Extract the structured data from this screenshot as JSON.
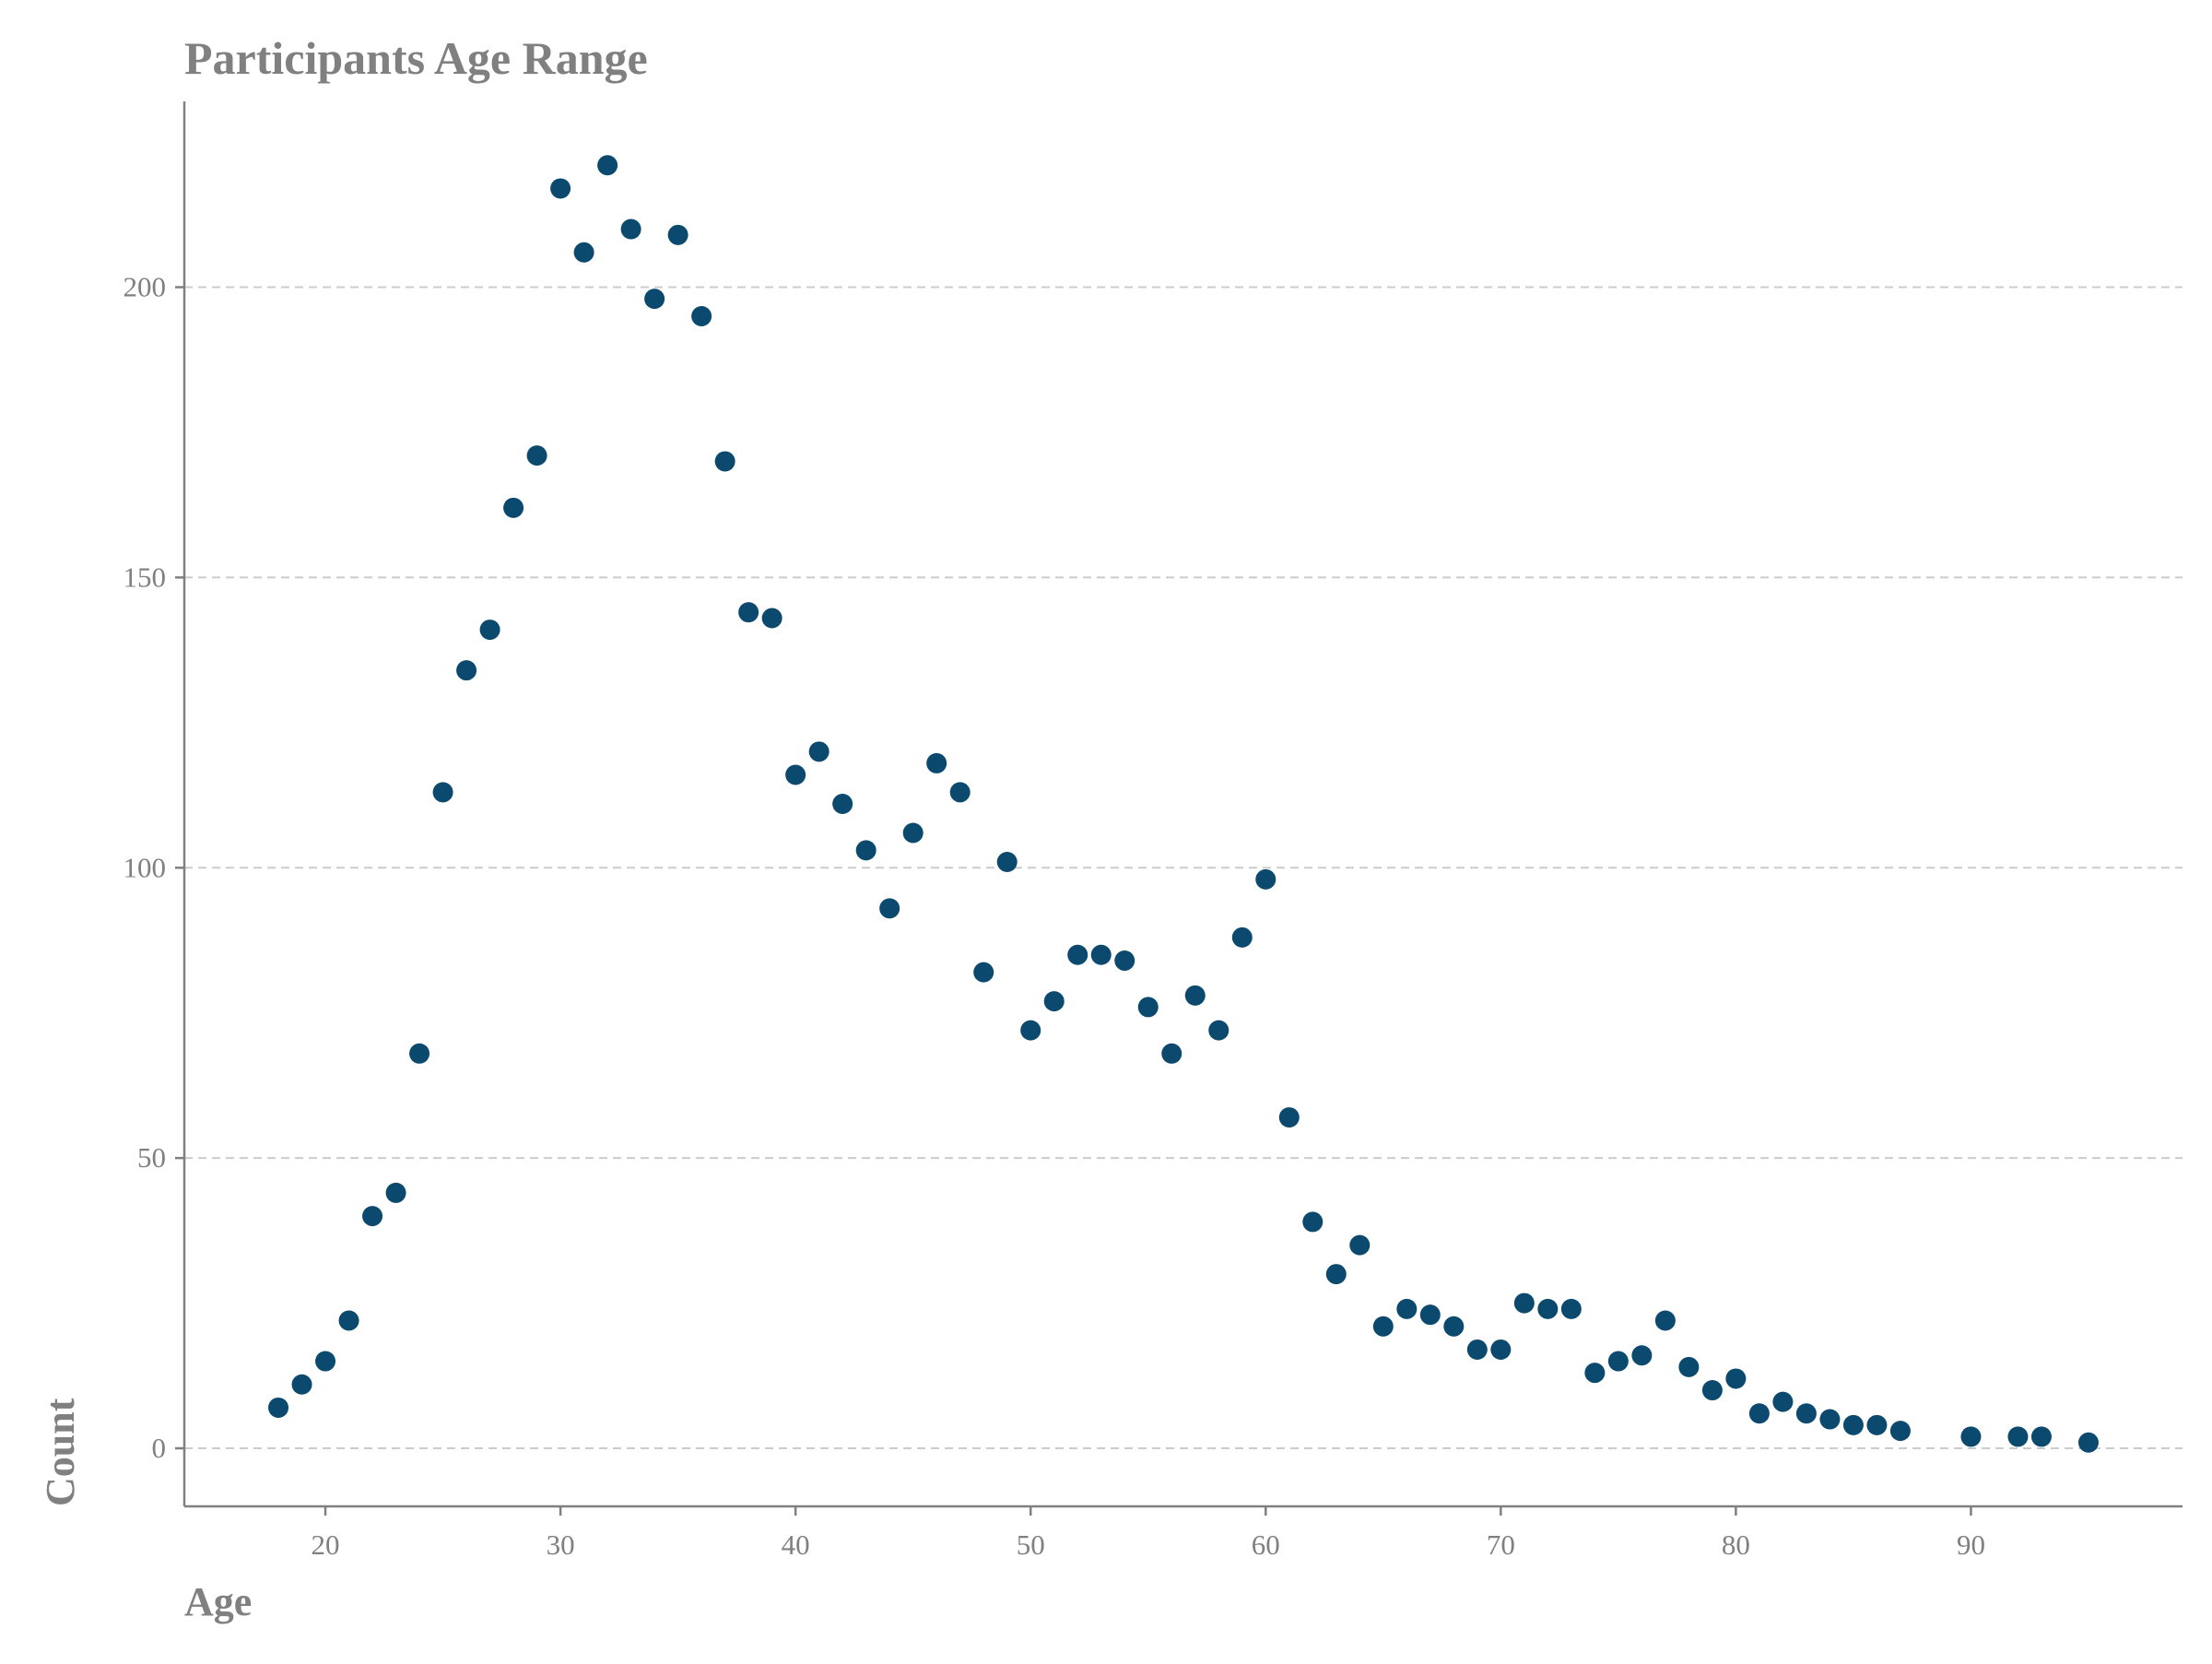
{
  "chart_data": {
    "type": "scatter",
    "title": "Participants Age Range",
    "xlabel": "Age",
    "ylabel": "Count",
    "xlim": [
      14,
      99
    ],
    "ylim": [
      -10,
      232
    ],
    "xticks": [
      20,
      30,
      40,
      50,
      60,
      70,
      80,
      90
    ],
    "yticks": [
      0,
      50,
      100,
      150,
      200
    ],
    "grid": "horizontal dashed",
    "marker_color": "#0b4a6e",
    "points": [
      {
        "x": 18,
        "y": 7
      },
      {
        "x": 19,
        "y": 11
      },
      {
        "x": 20,
        "y": 15
      },
      {
        "x": 21,
        "y": 22
      },
      {
        "x": 22,
        "y": 40
      },
      {
        "x": 23,
        "y": 44
      },
      {
        "x": 24,
        "y": 68
      },
      {
        "x": 25,
        "y": 113
      },
      {
        "x": 26,
        "y": 134
      },
      {
        "x": 27,
        "y": 141
      },
      {
        "x": 28,
        "y": 162
      },
      {
        "x": 29,
        "y": 171
      },
      {
        "x": 30,
        "y": 217
      },
      {
        "x": 31,
        "y": 206
      },
      {
        "x": 32,
        "y": 221
      },
      {
        "x": 33,
        "y": 210
      },
      {
        "x": 34,
        "y": 198
      },
      {
        "x": 35,
        "y": 209
      },
      {
        "x": 36,
        "y": 195
      },
      {
        "x": 37,
        "y": 170
      },
      {
        "x": 38,
        "y": 144
      },
      {
        "x": 39,
        "y": 143
      },
      {
        "x": 40,
        "y": 116
      },
      {
        "x": 41,
        "y": 120
      },
      {
        "x": 42,
        "y": 111
      },
      {
        "x": 43,
        "y": 103
      },
      {
        "x": 44,
        "y": 93
      },
      {
        "x": 45,
        "y": 106
      },
      {
        "x": 46,
        "y": 118
      },
      {
        "x": 47,
        "y": 113
      },
      {
        "x": 48,
        "y": 82
      },
      {
        "x": 49,
        "y": 101
      },
      {
        "x": 50,
        "y": 72
      },
      {
        "x": 51,
        "y": 77
      },
      {
        "x": 52,
        "y": 85
      },
      {
        "x": 53,
        "y": 85
      },
      {
        "x": 54,
        "y": 84
      },
      {
        "x": 55,
        "y": 76
      },
      {
        "x": 56,
        "y": 68
      },
      {
        "x": 57,
        "y": 78
      },
      {
        "x": 58,
        "y": 72
      },
      {
        "x": 59,
        "y": 88
      },
      {
        "x": 60,
        "y": 98
      },
      {
        "x": 61,
        "y": 57
      },
      {
        "x": 62,
        "y": 39
      },
      {
        "x": 63,
        "y": 30
      },
      {
        "x": 64,
        "y": 35
      },
      {
        "x": 65,
        "y": 21
      },
      {
        "x": 66,
        "y": 24
      },
      {
        "x": 67,
        "y": 23
      },
      {
        "x": 68,
        "y": 21
      },
      {
        "x": 69,
        "y": 17
      },
      {
        "x": 70,
        "y": 17
      },
      {
        "x": 71,
        "y": 25
      },
      {
        "x": 72,
        "y": 24
      },
      {
        "x": 73,
        "y": 24
      },
      {
        "x": 74,
        "y": 13
      },
      {
        "x": 75,
        "y": 15
      },
      {
        "x": 76,
        "y": 16
      },
      {
        "x": 77,
        "y": 22
      },
      {
        "x": 78,
        "y": 14
      },
      {
        "x": 79,
        "y": 10
      },
      {
        "x": 80,
        "y": 12
      },
      {
        "x": 81,
        "y": 6
      },
      {
        "x": 82,
        "y": 8
      },
      {
        "x": 83,
        "y": 6
      },
      {
        "x": 84,
        "y": 5
      },
      {
        "x": 85,
        "y": 4
      },
      {
        "x": 86,
        "y": 4
      },
      {
        "x": 87,
        "y": 3
      },
      {
        "x": 90,
        "y": 2
      },
      {
        "x": 92,
        "y": 2
      },
      {
        "x": 93,
        "y": 2
      },
      {
        "x": 95,
        "y": 1
      }
    ]
  }
}
